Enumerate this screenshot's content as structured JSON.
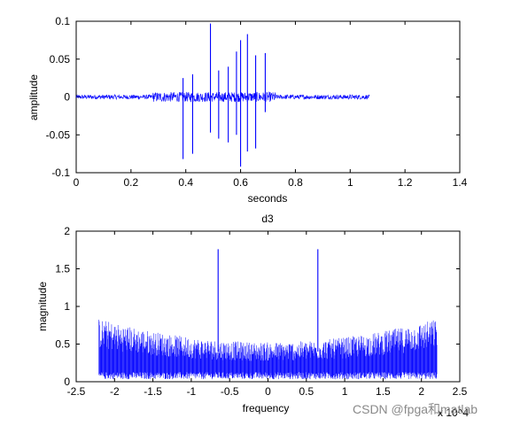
{
  "chart_data": [
    {
      "type": "line",
      "title": "",
      "xlabel": "seconds",
      "ylabel": "amplitude",
      "xlim": [
        0,
        1.4
      ],
      "ylim": [
        -0.1,
        0.1
      ],
      "xticks": [
        "0",
        "0.2",
        "0.4",
        "0.6",
        "0.8",
        "1",
        "1.2",
        "1.4"
      ],
      "yticks": [
        "0.1",
        "0.05",
        "0",
        "-0.05",
        "-0.1"
      ],
      "signal_range": [
        0,
        1.07
      ],
      "noise_amplitude": 0.003,
      "burst_region": [
        0.28,
        0.73
      ],
      "spikes": [
        {
          "x": 0.39,
          "y": -0.082
        },
        {
          "x": 0.39,
          "y": 0.025
        },
        {
          "x": 0.425,
          "y": 0.03
        },
        {
          "x": 0.425,
          "y": -0.075
        },
        {
          "x": 0.49,
          "y": 0.097
        },
        {
          "x": 0.49,
          "y": -0.047
        },
        {
          "x": 0.52,
          "y": 0.035
        },
        {
          "x": 0.52,
          "y": -0.055
        },
        {
          "x": 0.555,
          "y": 0.04
        },
        {
          "x": 0.555,
          "y": -0.06
        },
        {
          "x": 0.585,
          "y": 0.06
        },
        {
          "x": 0.585,
          "y": -0.05
        },
        {
          "x": 0.6,
          "y": 0.075
        },
        {
          "x": 0.6,
          "y": -0.092
        },
        {
          "x": 0.625,
          "y": 0.083
        },
        {
          "x": 0.625,
          "y": -0.072
        },
        {
          "x": 0.655,
          "y": 0.055
        },
        {
          "x": 0.655,
          "y": -0.068
        },
        {
          "x": 0.69,
          "y": 0.058
        },
        {
          "x": 0.69,
          "y": -0.02
        }
      ],
      "color": "#0000ff"
    },
    {
      "type": "line",
      "title": "d3",
      "xlabel": "frequency",
      "ylabel": "magnitude",
      "xlim": [
        -25000,
        25000
      ],
      "ylim": [
        0,
        2
      ],
      "xticks": [
        "-2.5",
        "-2",
        "-1.5",
        "-1",
        "-0.5",
        "0",
        "0.5",
        "1",
        "1.5",
        "2",
        "2.5"
      ],
      "yticks": [
        "2",
        "1.5",
        "1",
        "0.5",
        "0"
      ],
      "x_multiplier": "x 10^4",
      "signal_range": [
        -22050,
        22050
      ],
      "baseline": 0.08,
      "envelope_edge": 0.8,
      "envelope_center": 0.5,
      "spikes": [
        {
          "x": -6500,
          "y": 1.76
        },
        {
          "x": 6500,
          "y": 1.76
        }
      ],
      "color": "#0000ff"
    }
  ],
  "watermark": "CSDN @fpga和matlab"
}
